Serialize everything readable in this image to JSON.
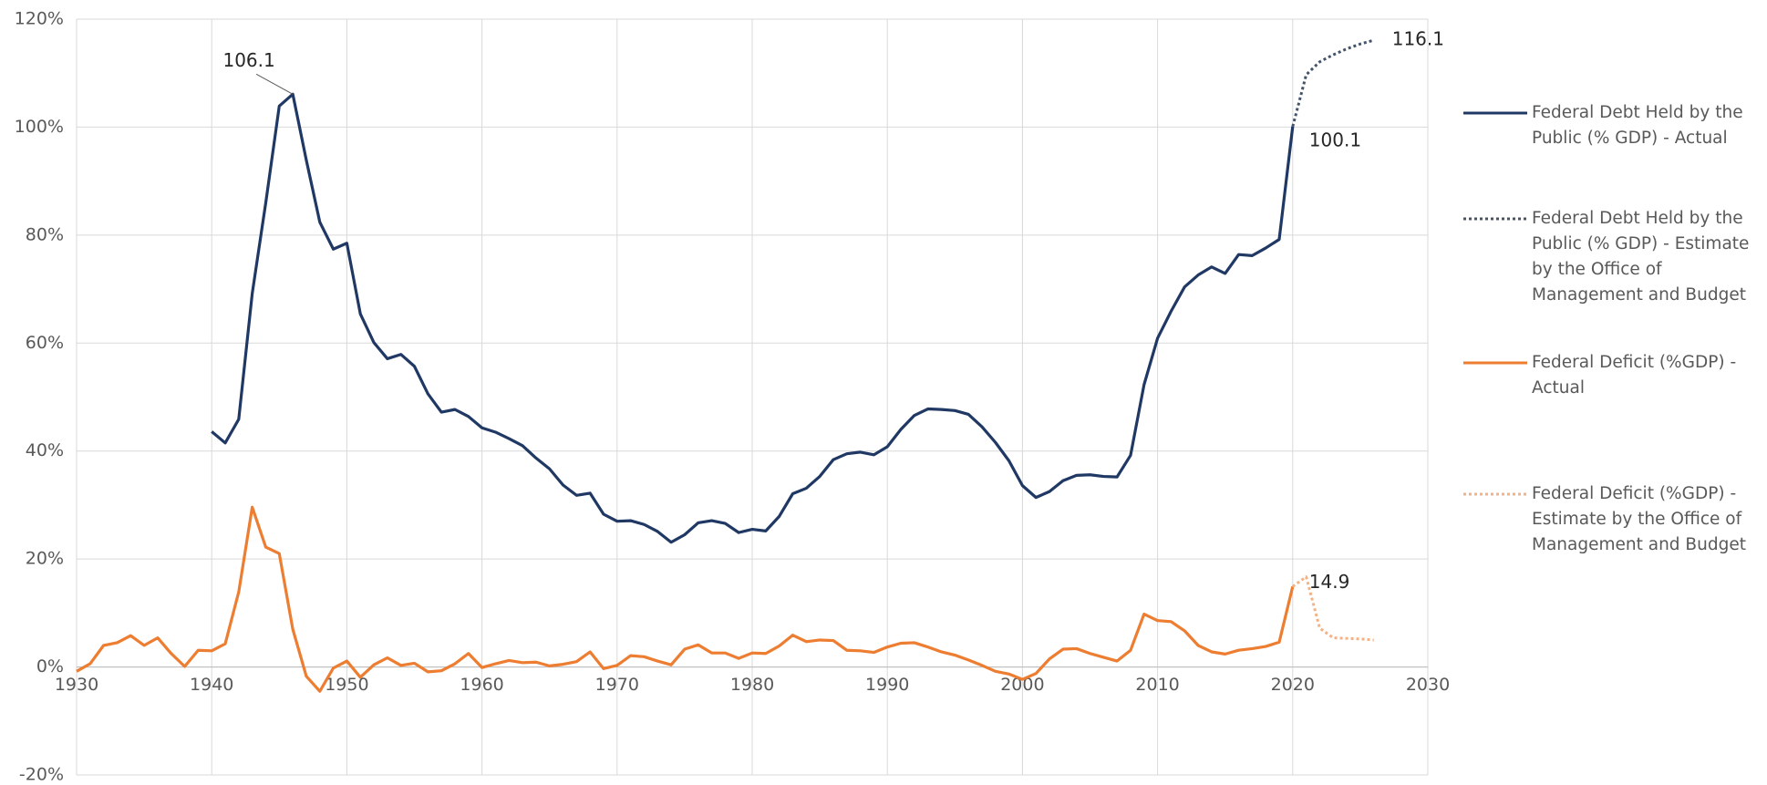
{
  "chart_data": {
    "type": "line",
    "x": [
      1930,
      1931,
      1932,
      1933,
      1934,
      1935,
      1936,
      1937,
      1938,
      1939,
      1940,
      1941,
      1942,
      1943,
      1944,
      1945,
      1946,
      1947,
      1948,
      1949,
      1950,
      1951,
      1952,
      1953,
      1954,
      1955,
      1956,
      1957,
      1958,
      1959,
      1960,
      1961,
      1962,
      1963,
      1964,
      1965,
      1966,
      1967,
      1968,
      1969,
      1970,
      1971,
      1972,
      1973,
      1974,
      1975,
      1976,
      1977,
      1978,
      1979,
      1980,
      1981,
      1982,
      1983,
      1984,
      1985,
      1986,
      1987,
      1988,
      1989,
      1990,
      1991,
      1992,
      1993,
      1994,
      1995,
      1996,
      1997,
      1998,
      1999,
      2000,
      2001,
      2002,
      2003,
      2004,
      2005,
      2006,
      2007,
      2008,
      2009,
      2010,
      2011,
      2012,
      2013,
      2014,
      2015,
      2016,
      2017,
      2018,
      2019,
      2020,
      2021,
      2022,
      2023,
      2024,
      2025,
      2026
    ],
    "series": [
      {
        "name": "Federal Debt Held by the Public (% GDP) - Actual",
        "color": "#203864",
        "style": "solid",
        "values": [
          null,
          null,
          null,
          null,
          null,
          null,
          null,
          null,
          null,
          null,
          43.6,
          41.5,
          45.9,
          69.2,
          86.0,
          103.9,
          106.1,
          93.9,
          82.4,
          77.4,
          78.5,
          65.4,
          60.1,
          57.1,
          57.9,
          55.7,
          50.6,
          47.2,
          47.7,
          46.4,
          44.3,
          43.5,
          42.3,
          41.0,
          38.7,
          36.7,
          33.7,
          31.8,
          32.2,
          28.3,
          27.0,
          27.1,
          26.4,
          25.1,
          23.1,
          24.5,
          26.7,
          27.1,
          26.6,
          24.9,
          25.5,
          25.2,
          27.9,
          32.1,
          33.1,
          35.3,
          38.4,
          39.5,
          39.8,
          39.3,
          40.8,
          44.0,
          46.6,
          47.8,
          47.7,
          47.5,
          46.8,
          44.5,
          41.6,
          38.2,
          33.6,
          31.4,
          32.5,
          34.5,
          35.5,
          35.6,
          35.3,
          35.2,
          39.2,
          52.3,
          60.9,
          65.9,
          70.4,
          72.6,
          74.1,
          72.9,
          76.4,
          76.2,
          77.6,
          79.2,
          100.1,
          null,
          null,
          null,
          null,
          null,
          null
        ]
      },
      {
        "name": "Federal Debt Held by the Public (% GDP) - Estimate by the Office of Management and Budget",
        "color": "#44546a",
        "style": "dotted",
        "values": [
          null,
          null,
          null,
          null,
          null,
          null,
          null,
          null,
          null,
          null,
          null,
          null,
          null,
          null,
          null,
          null,
          null,
          null,
          null,
          null,
          null,
          null,
          null,
          null,
          null,
          null,
          null,
          null,
          null,
          null,
          null,
          null,
          null,
          null,
          null,
          null,
          null,
          null,
          null,
          null,
          null,
          null,
          null,
          null,
          null,
          null,
          null,
          null,
          null,
          null,
          null,
          null,
          null,
          null,
          null,
          null,
          null,
          null,
          null,
          null,
          null,
          null,
          null,
          null,
          null,
          null,
          null,
          null,
          null,
          null,
          null,
          null,
          null,
          null,
          null,
          null,
          null,
          null,
          null,
          null,
          null,
          null,
          null,
          null,
          null,
          null,
          null,
          null,
          null,
          null,
          100.1,
          109.7,
          112.1,
          113.4,
          114.5,
          115.4,
          116.1
        ]
      },
      {
        "name": "Federal Deficit (%GDP) - Actual",
        "color": "#ed7d31",
        "style": "solid",
        "values": [
          -0.8,
          0.6,
          4.0,
          4.5,
          5.8,
          4.0,
          5.4,
          2.5,
          0.1,
          3.1,
          3.0,
          4.3,
          13.9,
          29.6,
          22.2,
          21.0,
          7.0,
          -1.7,
          -4.5,
          -0.2,
          1.1,
          -1.9,
          0.4,
          1.7,
          0.3,
          0.7,
          -0.9,
          -0.7,
          0.6,
          2.5,
          -0.1,
          0.6,
          1.2,
          0.8,
          0.9,
          0.2,
          0.5,
          1.0,
          2.8,
          -0.3,
          0.3,
          2.1,
          1.9,
          1.1,
          0.4,
          3.3,
          4.1,
          2.6,
          2.6,
          1.6,
          2.6,
          2.5,
          3.9,
          5.9,
          4.7,
          5.0,
          4.9,
          3.1,
          3.0,
          2.7,
          3.7,
          4.4,
          4.5,
          3.7,
          2.8,
          2.2,
          1.3,
          0.3,
          -0.8,
          -1.3,
          -2.3,
          -1.2,
          1.5,
          3.3,
          3.4,
          2.5,
          1.8,
          1.1,
          3.1,
          9.8,
          8.6,
          8.4,
          6.7,
          4.0,
          2.8,
          2.4,
          3.1,
          3.4,
          3.8,
          4.6,
          14.9,
          null,
          null,
          null,
          null,
          null,
          null
        ]
      },
      {
        "name": "Federal Deficit (%GDP) - Estimate by the Office of Management and Budget",
        "color": "#f4b183",
        "style": "dotted",
        "values": [
          null,
          null,
          null,
          null,
          null,
          null,
          null,
          null,
          null,
          null,
          null,
          null,
          null,
          null,
          null,
          null,
          null,
          null,
          null,
          null,
          null,
          null,
          null,
          null,
          null,
          null,
          null,
          null,
          null,
          null,
          null,
          null,
          null,
          null,
          null,
          null,
          null,
          null,
          null,
          null,
          null,
          null,
          null,
          null,
          null,
          null,
          null,
          null,
          null,
          null,
          null,
          null,
          null,
          null,
          null,
          null,
          null,
          null,
          null,
          null,
          null,
          null,
          null,
          null,
          null,
          null,
          null,
          null,
          null,
          null,
          null,
          null,
          null,
          null,
          null,
          null,
          null,
          null,
          null,
          null,
          null,
          null,
          null,
          null,
          null,
          null,
          null,
          null,
          null,
          null,
          14.9,
          16.7,
          7.2,
          5.4,
          5.3,
          5.2,
          5.0
        ]
      }
    ],
    "annotations": [
      {
        "text": "106.1",
        "x": 1946,
        "y": 106.1
      },
      {
        "text": "116.1",
        "x": 2026,
        "y": 116.1
      },
      {
        "text": "100.1",
        "x": 2020,
        "y": 100.1
      },
      {
        "text": "14.9",
        "x": 2020,
        "y": 14.9
      }
    ],
    "xlim": [
      1930,
      2030
    ],
    "xticks": [
      1930,
      1940,
      1950,
      1960,
      1970,
      1980,
      1990,
      2000,
      2010,
      2020,
      2030
    ],
    "ylim": [
      -20,
      120
    ],
    "yticks": [
      {
        "value": -20,
        "label": "-20%"
      },
      {
        "value": 0,
        "label": "0%"
      },
      {
        "value": 20,
        "label": "20%"
      },
      {
        "value": 40,
        "label": "40%"
      },
      {
        "value": 60,
        "label": "60%"
      },
      {
        "value": 80,
        "label": "80%"
      },
      {
        "value": 100,
        "label": "100%"
      },
      {
        "value": 120,
        "label": "120%"
      }
    ],
    "grid": true
  }
}
